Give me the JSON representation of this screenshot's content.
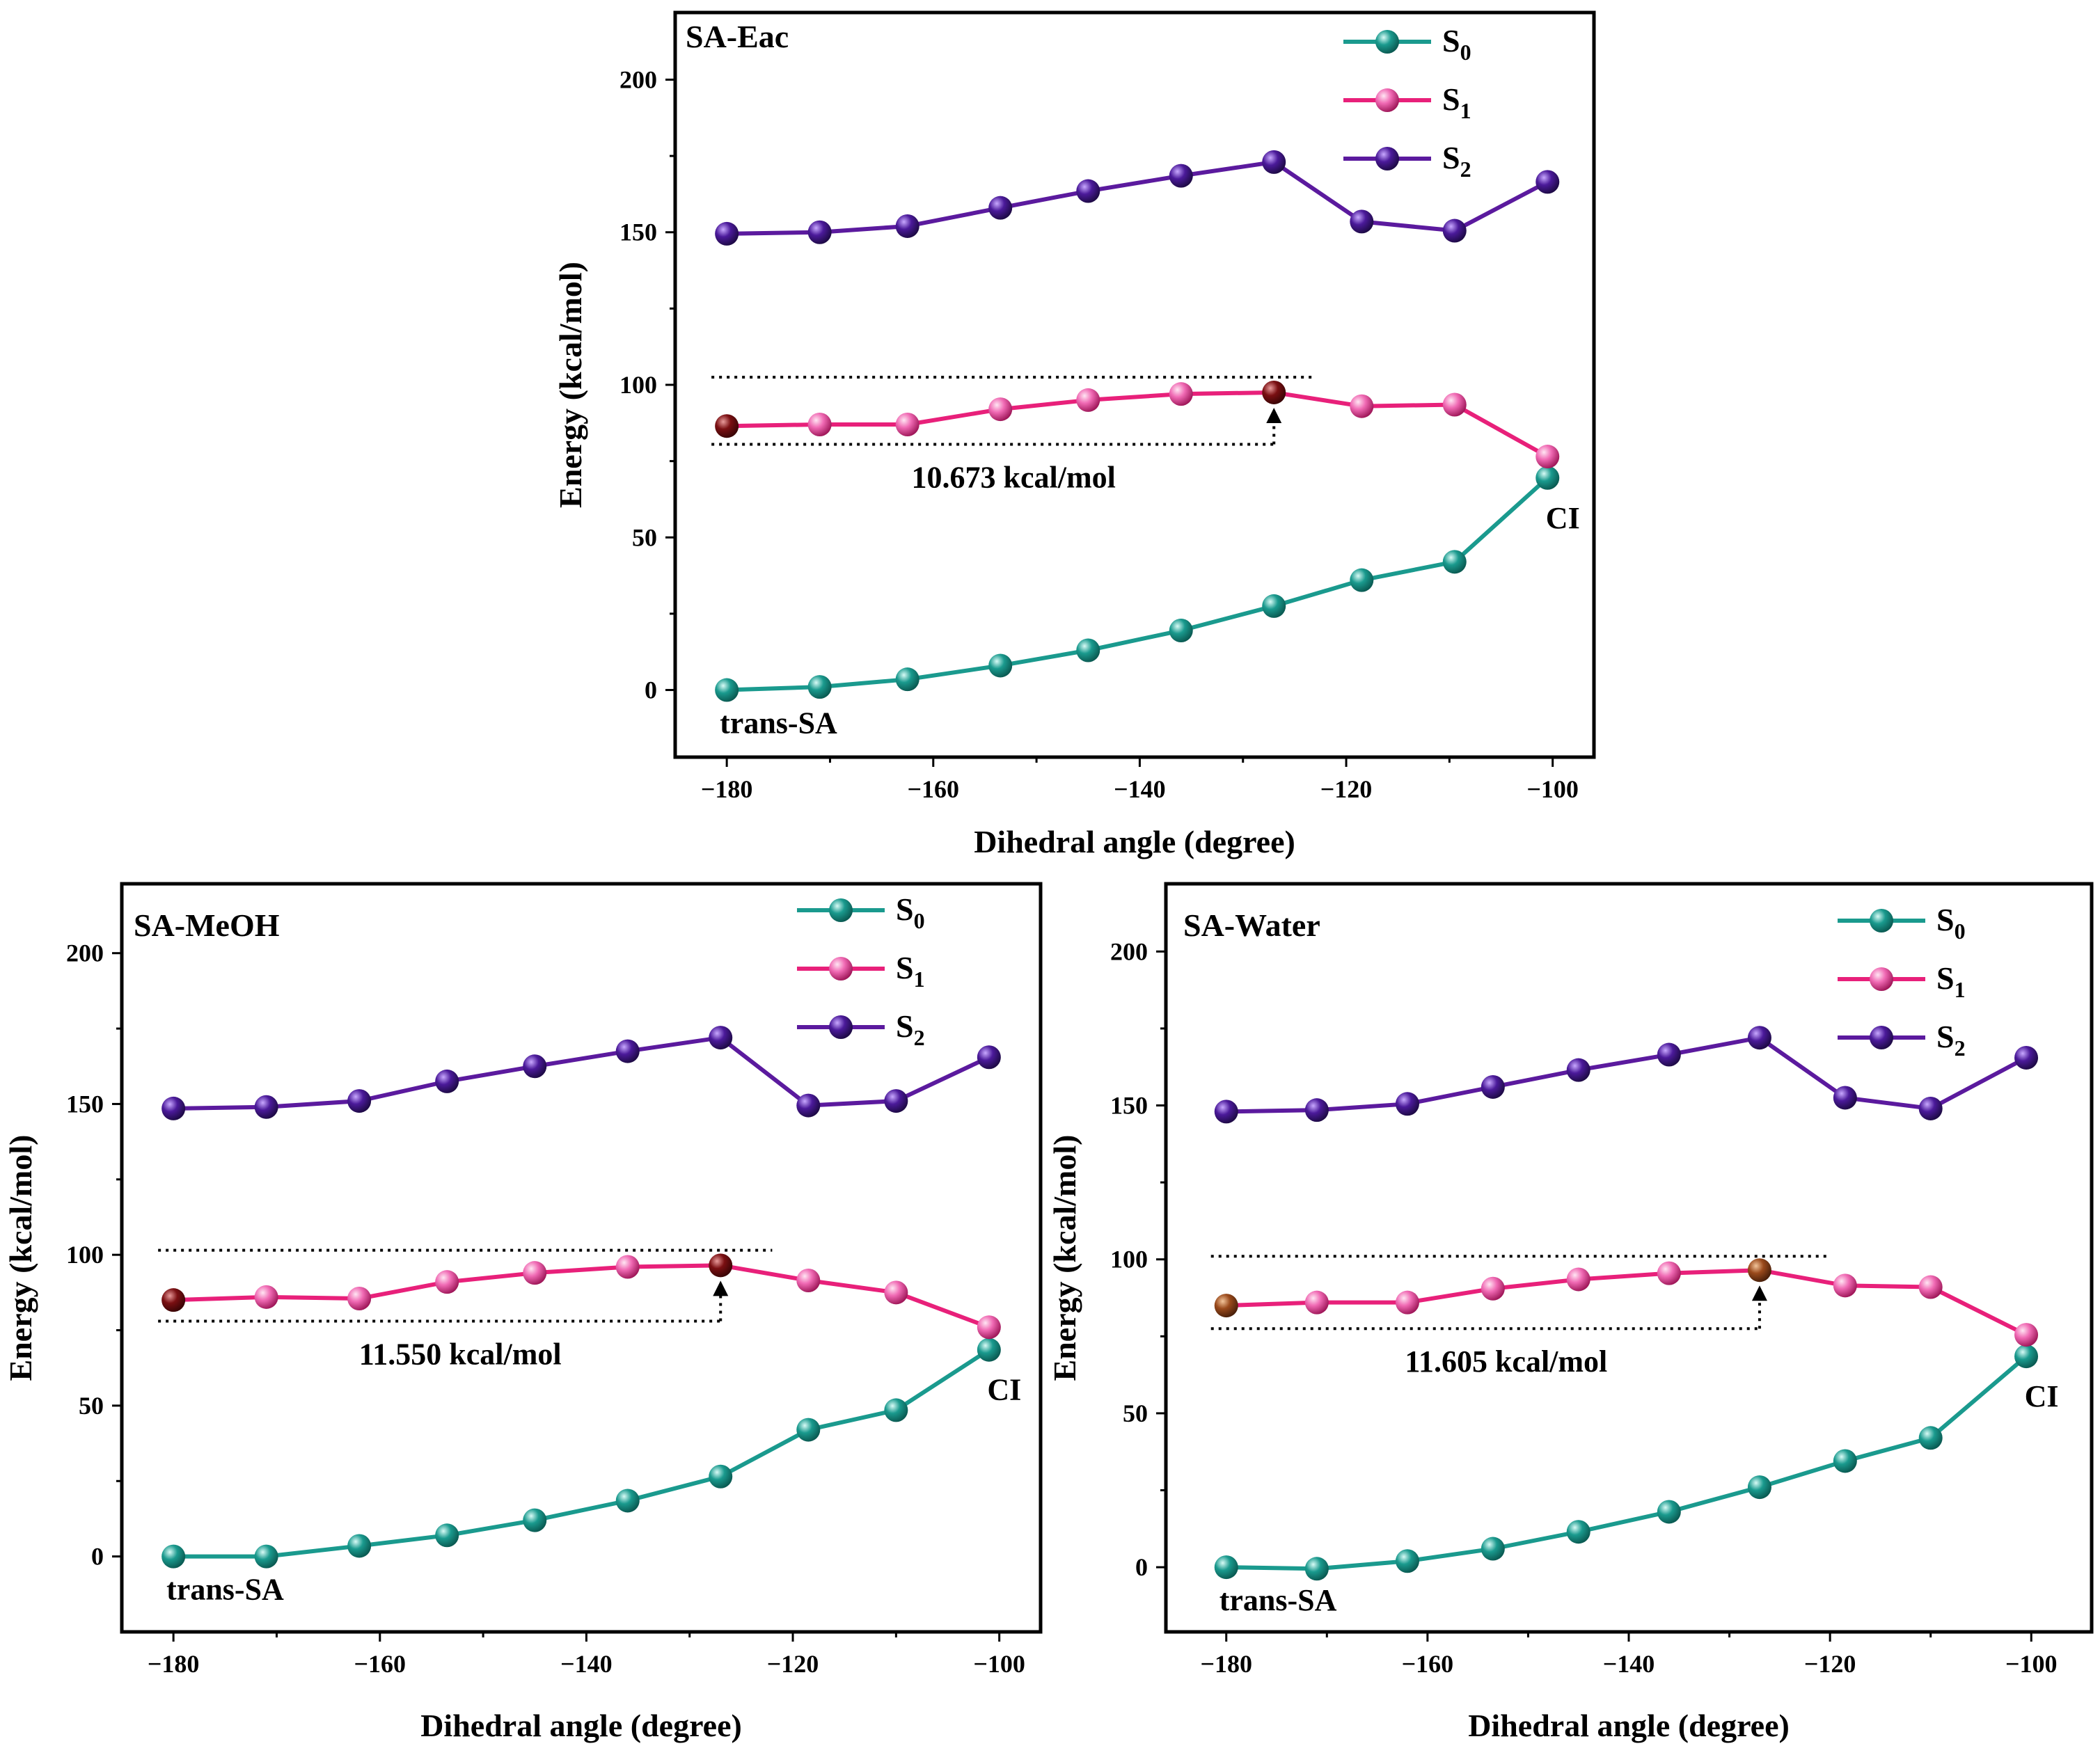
{
  "chart_data": [
    {
      "type": "line",
      "title": "SA-Eac",
      "xlabel": "Dihedral angle (degree)",
      "ylabel": "Energy (kcal/mol)",
      "xlim": [
        -185,
        -96
      ],
      "ylim": [
        -22,
        222
      ],
      "xticks": [
        -180,
        -160,
        -140,
        -120,
        -100
      ],
      "yticks": [
        0,
        50,
        100,
        150,
        200
      ],
      "xtick_labels": [
        "−180",
        "−160",
        "−140",
        "−120",
        "−100"
      ],
      "ytick_labels": [
        "0",
        "50",
        "100",
        "150",
        "200"
      ],
      "x": [
        -180,
        -171,
        -162.5,
        -153.5,
        -145,
        -136,
        -127,
        -118.5,
        -109.5,
        -100.5
      ],
      "series": [
        {
          "name": "S",
          "sub": "0",
          "color": "#1a9a8e",
          "values": [
            0,
            1,
            3.5,
            8,
            13,
            19.5,
            27.5,
            36,
            42,
            69.5
          ]
        },
        {
          "name": "S",
          "sub": "1",
          "color": "#e8207a",
          "values": [
            86.5,
            87,
            87,
            92,
            95,
            97,
            97.5,
            93,
            93.5,
            76.5
          ]
        },
        {
          "name": "S",
          "sub": "2",
          "color": "#5b1a9e",
          "values": [
            149.5,
            150,
            152,
            158,
            163.5,
            168.5,
            173,
            153.5,
            150.5,
            166.5
          ]
        }
      ],
      "highlight_color": "#7a0f12",
      "barrier": {
        "value": "10.673 kcal/mol",
        "upper": 102.5,
        "lower": 80.5,
        "upper_x_end": -123,
        "arrow_x": -127
      },
      "annotations": {
        "start": "trans-SA",
        "end": "CI"
      },
      "legend": "top-right"
    },
    {
      "type": "line",
      "title": "SA-MeOH",
      "xlabel": "Dihedral angle (degree)",
      "ylabel": "Energy (kcal/mol)",
      "xlim": [
        -185,
        -96
      ],
      "ylim": [
        -25,
        223
      ],
      "xticks": [
        -180,
        -160,
        -140,
        -120,
        -100
      ],
      "yticks": [
        0,
        50,
        100,
        150,
        200
      ],
      "xtick_labels": [
        "−180",
        "−160",
        "−140",
        "−120",
        "−100"
      ],
      "ytick_labels": [
        "0",
        "50",
        "100",
        "150",
        "200"
      ],
      "x": [
        -180,
        -171,
        -162,
        -153.5,
        -145,
        -136,
        -127,
        -118.5,
        -110,
        -101
      ],
      "series": [
        {
          "name": "S",
          "sub": "0",
          "color": "#1a9a8e",
          "values": [
            0,
            0,
            3.5,
            7,
            12,
            18.5,
            26.5,
            42,
            48.5,
            68.5
          ]
        },
        {
          "name": "S",
          "sub": "1",
          "color": "#e8207a",
          "values": [
            85,
            86,
            85.5,
            91,
            94,
            96,
            96.5,
            91.5,
            87.5,
            76
          ]
        },
        {
          "name": "S",
          "sub": "2",
          "color": "#5b1a9e",
          "values": [
            148.5,
            149,
            151,
            157.5,
            162.5,
            167.5,
            172,
            149.5,
            151,
            165.5
          ]
        }
      ],
      "highlight_color": "#7a0f12",
      "barrier": {
        "value": "11.550 kcal/mol",
        "upper": 101.5,
        "lower": 78,
        "upper_x_end": -122,
        "arrow_x": -127
      },
      "annotations": {
        "start": "trans-SA",
        "end": "CI"
      },
      "legend": "top-right"
    },
    {
      "type": "line",
      "title": "SA-Water",
      "xlabel": "Dihedral angle (degree)",
      "ylabel": "Energy (kcal/mol)",
      "xlim": [
        -186,
        -94
      ],
      "ylim": [
        -21,
        222
      ],
      "xticks": [
        -180,
        -160,
        -140,
        -120,
        -100
      ],
      "yticks": [
        0,
        50,
        100,
        150,
        200
      ],
      "xtick_labels": [
        "−180",
        "−160",
        "−140",
        "−120",
        "−100"
      ],
      "ytick_labels": [
        "0",
        "50",
        "100",
        "150",
        "200"
      ],
      "x": [
        -180,
        -171,
        -162,
        -153.5,
        -145,
        -136,
        -127,
        -118.5,
        -110,
        -100.5
      ],
      "series": [
        {
          "name": "S",
          "sub": "0",
          "color": "#1a9a8e",
          "values": [
            0,
            -0.5,
            2,
            6,
            11.5,
            18,
            26,
            34.5,
            42,
            68.5
          ]
        },
        {
          "name": "S",
          "sub": "1",
          "color": "#e8207a",
          "values": [
            85,
            86,
            86,
            90.5,
            93.5,
            95.5,
            96.5,
            91.5,
            91,
            75.5
          ]
        },
        {
          "name": "S",
          "sub": "2",
          "color": "#5b1a9e",
          "values": [
            148,
            148.5,
            150.5,
            156,
            161.5,
            166.5,
            172,
            152.5,
            149,
            165.5
          ]
        }
      ],
      "highlight_color": "#9a4a1c",
      "barrier": {
        "value": "11.605 kcal/mol",
        "upper": 101,
        "lower": 77.5,
        "upper_x_end": -120,
        "arrow_x": -127
      },
      "annotations": {
        "start": "trans-SA",
        "end": "CI"
      },
      "legend": "top-right"
    }
  ]
}
